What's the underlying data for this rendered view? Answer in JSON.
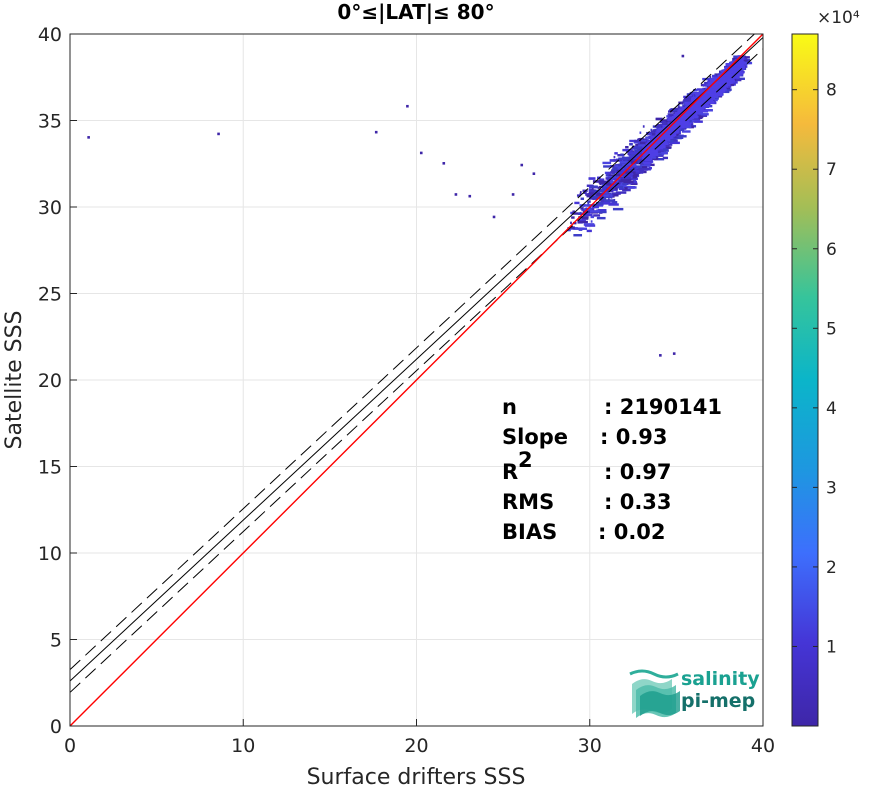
{
  "chart_data": {
    "type": "heatmap",
    "title": "0°≤|LAT|≤ 80°",
    "xlabel": "Surface drifters SSS",
    "ylabel": "Satellite SSS",
    "xlim": [
      0,
      40
    ],
    "ylim": [
      0,
      40
    ],
    "x_ticks": [
      "0",
      "10",
      "20",
      "30",
      "40"
    ],
    "y_ticks": [
      "0",
      "5",
      "10",
      "15",
      "20",
      "25",
      "30",
      "35",
      "40"
    ],
    "grid": true,
    "colorbar": {
      "range": [
        0,
        87000
      ],
      "exponent_label": "×10⁴",
      "ticks": [
        "1",
        "2",
        "3",
        "4",
        "5",
        "6",
        "7",
        "8"
      ],
      "tick_values": [
        1,
        2,
        3,
        4,
        5,
        6,
        7,
        8
      ],
      "colormap": "parula"
    },
    "lines": {
      "identity_color": "#ff0000",
      "fit_slope": 0.93,
      "fit_intercept": 2.6,
      "fit_band_offset": 0.66,
      "fit_color": "#000000"
    },
    "density_core": {
      "x_range": [
        29,
        38.5
      ],
      "y_range": [
        24,
        38.5
      ]
    },
    "stats": [
      {
        "name": "n",
        "value": ": 2190141"
      },
      {
        "name": "Slope",
        "value": ": 0.93"
      },
      {
        "name": "R",
        "sup": "2",
        "value": ": 0.97"
      },
      {
        "name": "RMS",
        "value": ": 0.33"
      },
      {
        "name": "BIAS",
        "value": ": 0.02"
      }
    ]
  },
  "logo": {
    "line1": "salinity",
    "line2": "pi-mep",
    "color_primary": "#1aa191",
    "color_secondary": "#15706a"
  }
}
